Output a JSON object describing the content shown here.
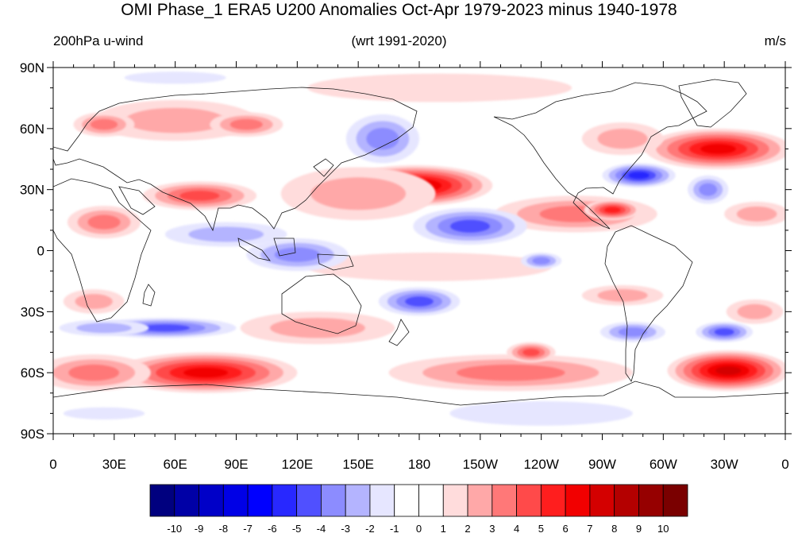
{
  "header": {
    "title": "OMI Phase_1 ERA5 U200 Anomalies Oct-Apr 1979-2023 minus 1940-1978",
    "left_string": "200hPa u-wind",
    "center_string": "(wrt 1991-2020)",
    "right_string": "m/s"
  },
  "axes": {
    "lat_ticks": [
      {
        "value": 90,
        "label": "90N"
      },
      {
        "value": 60,
        "label": "60N"
      },
      {
        "value": 30,
        "label": "30N"
      },
      {
        "value": 0,
        "label": "0"
      },
      {
        "value": -30,
        "label": "30S"
      },
      {
        "value": -60,
        "label": "60S"
      },
      {
        "value": -90,
        "label": "90S"
      }
    ],
    "lon_ticks": [
      {
        "value": 0,
        "label": "0"
      },
      {
        "value": 30,
        "label": "30E"
      },
      {
        "value": 60,
        "label": "60E"
      },
      {
        "value": 90,
        "label": "90E"
      },
      {
        "value": 120,
        "label": "120E"
      },
      {
        "value": 150,
        "label": "150E"
      },
      {
        "value": 180,
        "label": "180"
      },
      {
        "value": 210,
        "label": "150W"
      },
      {
        "value": 240,
        "label": "120W"
      },
      {
        "value": 270,
        "label": "90W"
      },
      {
        "value": 300,
        "label": "60W"
      },
      {
        "value": 330,
        "label": "30W"
      },
      {
        "value": 360,
        "label": "0"
      }
    ]
  },
  "colorbar": {
    "labels": [
      "-10",
      "-9",
      "-8",
      "-7",
      "-6",
      "-5",
      "-4",
      "-3",
      "-2",
      "-1",
      "0",
      "1",
      "2",
      "3",
      "4",
      "5",
      "6",
      "7",
      "8",
      "9",
      "10"
    ],
    "colors": [
      "#00007f",
      "#0000a6",
      "#0000c8",
      "#0000e6",
      "#0000ff",
      "#2828ff",
      "#5050ff",
      "#8c8cff",
      "#b4b4ff",
      "#e6e6ff",
      "#ffffff",
      "#ffffff",
      "#ffdcdc",
      "#ffa8a8",
      "#ff7878",
      "#ff4a4a",
      "#ff1e1e",
      "#f20000",
      "#d40000",
      "#b40000",
      "#960000",
      "#7a0000"
    ]
  },
  "colors": {
    "coast": "#1a1a1a",
    "frame": "#000000"
  },
  "anomalies": [
    {
      "lon": 178,
      "lat": 32,
      "rx": 38,
      "ry": 10,
      "value": 7
    },
    {
      "lon": 150,
      "lat": 28,
      "rx": 38,
      "ry": 13,
      "value": 2
    },
    {
      "lon": 72,
      "lat": 27,
      "rx": 28,
      "ry": 7,
      "value": 4
    },
    {
      "lon": 25,
      "lat": 14,
      "rx": 18,
      "ry": 8,
      "value": 3
    },
    {
      "lon": 60,
      "lat": 64,
      "rx": 40,
      "ry": 10,
      "value": 2
    },
    {
      "lon": 25,
      "lat": 62,
      "rx": 15,
      "ry": 6,
      "value": 3
    },
    {
      "lon": 95,
      "lat": 62,
      "rx": 18,
      "ry": 6,
      "value": 3
    },
    {
      "lon": 190,
      "lat": 80,
      "rx": 65,
      "ry": 7,
      "value": 1
    },
    {
      "lon": 327,
      "lat": 50,
      "rx": 36,
      "ry": 10,
      "value": 6
    },
    {
      "lon": 280,
      "lat": 55,
      "rx": 20,
      "ry": 8,
      "value": 2
    },
    {
      "lon": 257,
      "lat": 18,
      "rx": 40,
      "ry": 9,
      "value": 3
    },
    {
      "lon": 275,
      "lat": 20,
      "rx": 14,
      "ry": 5,
      "value": 5
    },
    {
      "lon": 346,
      "lat": 18,
      "rx": 16,
      "ry": 6,
      "value": 2
    },
    {
      "lon": 75,
      "lat": -60,
      "rx": 45,
      "ry": 10,
      "value": 6
    },
    {
      "lon": 20,
      "lat": -60,
      "rx": 28,
      "ry": 9,
      "value": 3
    },
    {
      "lon": 225,
      "lat": -60,
      "rx": 60,
      "ry": 9,
      "value": 3
    },
    {
      "lon": 235,
      "lat": -50,
      "rx": 12,
      "ry": 5,
      "value": 4
    },
    {
      "lon": 332,
      "lat": -59,
      "rx": 30,
      "ry": 10,
      "value": 7
    },
    {
      "lon": 130,
      "lat": -38,
      "rx": 38,
      "ry": 8,
      "value": 2
    },
    {
      "lon": 345,
      "lat": -30,
      "rx": 14,
      "ry": 6,
      "value": 2
    },
    {
      "lon": 280,
      "lat": -22,
      "rx": 20,
      "ry": 5,
      "value": 2
    },
    {
      "lon": 20,
      "lat": -25,
      "rx": 15,
      "ry": 6,
      "value": 2
    },
    {
      "lon": 185,
      "lat": -8,
      "rx": 60,
      "ry": 7,
      "value": 1
    },
    {
      "lon": 288,
      "lat": 37,
      "rx": 18,
      "ry": 6,
      "value": -5
    },
    {
      "lon": 205,
      "lat": 12,
      "rx": 28,
      "ry": 9,
      "value": -4
    },
    {
      "lon": 162,
      "lat": 55,
      "rx": 18,
      "ry": 12,
      "value": -3
    },
    {
      "lon": 85,
      "lat": 8,
      "rx": 30,
      "ry": 6,
      "value": -2
    },
    {
      "lon": 120,
      "lat": -2,
      "rx": 25,
      "ry": 8,
      "value": -3
    },
    {
      "lon": 240,
      "lat": -5,
      "rx": 10,
      "ry": 4,
      "value": -3
    },
    {
      "lon": 180,
      "lat": -25,
      "rx": 20,
      "ry": 7,
      "value": -4
    },
    {
      "lon": 55,
      "lat": -38,
      "rx": 35,
      "ry": 5,
      "value": -4
    },
    {
      "lon": 25,
      "lat": -38,
      "rx": 22,
      "ry": 4,
      "value": -2
    },
    {
      "lon": 285,
      "lat": -40,
      "rx": 16,
      "ry": 5,
      "value": -3
    },
    {
      "lon": 330,
      "lat": -40,
      "rx": 14,
      "ry": 5,
      "value": -4
    },
    {
      "lon": 322,
      "lat": 30,
      "rx": 10,
      "ry": 7,
      "value": -3
    },
    {
      "lon": 60,
      "lat": 85,
      "rx": 25,
      "ry": 3,
      "value": -1
    },
    {
      "lon": 240,
      "lat": -80,
      "rx": 45,
      "ry": 6,
      "value": -1
    },
    {
      "lon": 25,
      "lat": -80,
      "rx": 20,
      "ry": 3,
      "value": -1
    }
  ]
}
